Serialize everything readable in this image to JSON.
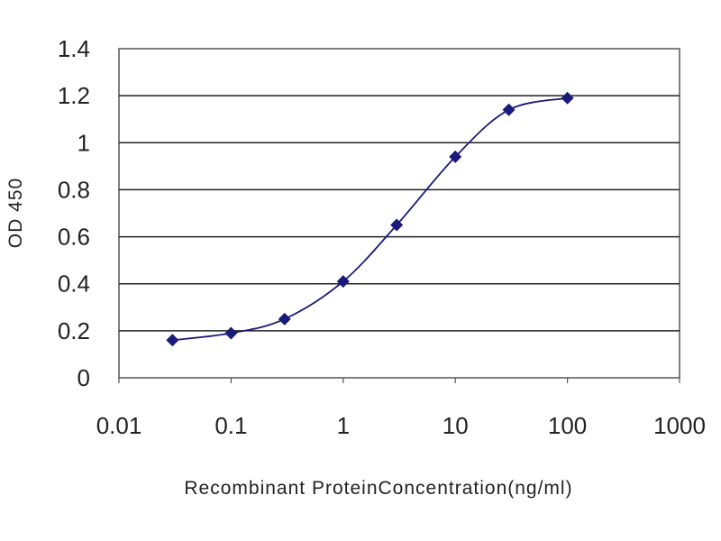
{
  "chart_data": {
    "type": "line",
    "title": "",
    "xlabel": "Recombinant ProteinConcentration(ng/ml)",
    "ylabel": "OD 450",
    "x_scale": "log",
    "xlim": [
      0.01,
      1000
    ],
    "ylim": [
      0,
      1.4
    ],
    "x_ticks": [
      "0.01",
      "0.1",
      "1",
      "10",
      "100",
      "1000"
    ],
    "y_ticks": [
      "0",
      "0.2",
      "0.4",
      "0.6",
      "0.8",
      "1",
      "1.2",
      "1.4"
    ],
    "grid": "horizontal",
    "legend": "none",
    "series": [
      {
        "x": [
          0.03,
          0.1,
          0.3,
          1,
          3,
          10,
          30,
          100
        ],
        "y": [
          0.16,
          0.19,
          0.25,
          0.41,
          0.65,
          0.94,
          1.14,
          1.19
        ],
        "color": "#1a1a7a"
      }
    ]
  }
}
